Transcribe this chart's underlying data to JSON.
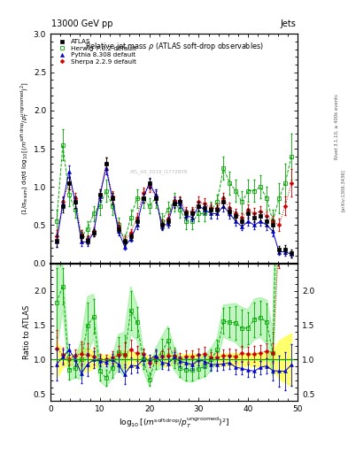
{
  "title_left": "13000 GeV pp",
  "title_right": "Jets",
  "plot_title": "Relative jet mass ρ (ATLAS soft-drop observables)",
  "xlabel": "log$_{10}$[(m$^{\\rm soft\\,drop}$/p$_T^{\\rm ungroomed})^2$]",
  "ylabel_main": "(1/σ$_{resum}$) dσ/d log$_{10}$[(m$^{soft\\,drop}$/p$_T^{ungroomed})^2$]",
  "ylabel_ratio": "Ratio to ATLAS",
  "right_label": "Rivet 3.1.10, ≥ 400k events",
  "right_label2": "[arXiv:1306.3436]",
  "watermark": "ATL_AS_2019_I1772858",
  "xlim": [
    0,
    50
  ],
  "ylim_main": [
    0,
    3
  ],
  "ylim_ratio": [
    0.4,
    2.4
  ],
  "xticks": [
    0,
    10,
    20,
    30,
    40,
    50
  ],
  "yticks_main": [
    0.0,
    0.5,
    1.0,
    1.5,
    2.0,
    2.5,
    3.0
  ],
  "yticks_ratio": [
    0.5,
    1.0,
    1.5,
    2.0
  ],
  "atlas_x": [
    1.25,
    2.5,
    3.75,
    5.0,
    6.25,
    7.5,
    8.75,
    10.0,
    11.25,
    12.5,
    13.75,
    15.0,
    16.25,
    17.5,
    18.75,
    20.0,
    21.25,
    22.5,
    23.75,
    25.0,
    26.25,
    27.5,
    28.75,
    30.0,
    31.25,
    32.5,
    33.75,
    35.0,
    36.25,
    37.5,
    38.75,
    40.0,
    41.25,
    42.5,
    43.75,
    45.0,
    46.25,
    47.5,
    48.75
  ],
  "atlas_y": [
    0.3,
    0.75,
    1.05,
    0.8,
    0.35,
    0.3,
    0.4,
    0.9,
    1.3,
    0.85,
    0.45,
    0.28,
    0.35,
    0.55,
    0.85,
    1.05,
    0.85,
    0.5,
    0.55,
    0.78,
    0.8,
    0.65,
    0.65,
    0.75,
    0.72,
    0.7,
    0.7,
    0.8,
    0.68,
    0.62,
    0.55,
    0.65,
    0.6,
    0.62,
    0.55,
    0.5,
    0.18,
    0.18,
    0.13
  ],
  "atlas_yerr": [
    0.08,
    0.08,
    0.08,
    0.07,
    0.06,
    0.05,
    0.05,
    0.07,
    0.08,
    0.07,
    0.05,
    0.04,
    0.04,
    0.05,
    0.06,
    0.06,
    0.06,
    0.05,
    0.05,
    0.06,
    0.06,
    0.05,
    0.06,
    0.06,
    0.06,
    0.06,
    0.06,
    0.07,
    0.06,
    0.06,
    0.05,
    0.06,
    0.06,
    0.06,
    0.06,
    0.07,
    0.05,
    0.06,
    0.05
  ],
  "herwig_x": [
    1.25,
    2.5,
    3.75,
    5.0,
    6.25,
    7.5,
    8.75,
    10.0,
    11.25,
    12.5,
    13.75,
    15.0,
    16.25,
    17.5,
    18.75,
    20.0,
    21.25,
    22.5,
    23.75,
    25.0,
    26.25,
    27.5,
    28.75,
    30.0,
    31.25,
    32.5,
    33.75,
    35.0,
    36.25,
    37.5,
    38.75,
    40.0,
    41.25,
    42.5,
    43.75,
    45.0,
    46.25,
    47.5,
    48.75
  ],
  "herwig_y": [
    0.55,
    1.55,
    0.9,
    0.7,
    0.35,
    0.45,
    0.65,
    0.75,
    0.95,
    0.75,
    0.5,
    0.3,
    0.6,
    0.85,
    0.85,
    0.75,
    0.85,
    0.55,
    0.7,
    0.8,
    0.7,
    0.55,
    0.55,
    0.65,
    0.65,
    0.7,
    0.8,
    1.25,
    1.05,
    0.95,
    0.8,
    0.95,
    0.95,
    1.0,
    0.85,
    0.55,
    0.85,
    1.05,
    1.4
  ],
  "herwig_yerr": [
    0.15,
    0.2,
    0.15,
    0.1,
    0.08,
    0.1,
    0.1,
    0.12,
    0.15,
    0.12,
    0.1,
    0.08,
    0.1,
    0.12,
    0.12,
    0.1,
    0.12,
    0.1,
    0.1,
    0.12,
    0.1,
    0.1,
    0.1,
    0.1,
    0.1,
    0.1,
    0.1,
    0.15,
    0.15,
    0.15,
    0.15,
    0.15,
    0.15,
    0.15,
    0.15,
    0.15,
    0.2,
    0.25,
    0.3
  ],
  "pythia_x": [
    1.25,
    2.5,
    3.75,
    5.0,
    6.25,
    7.5,
    8.75,
    10.0,
    11.25,
    12.5,
    13.75,
    15.0,
    16.25,
    17.5,
    18.75,
    20.0,
    21.25,
    22.5,
    23.75,
    25.0,
    26.25,
    27.5,
    28.75,
    30.0,
    31.25,
    32.5,
    33.75,
    35.0,
    36.25,
    37.5,
    38.75,
    40.0,
    41.25,
    42.5,
    43.75,
    45.0,
    46.25,
    47.5,
    48.75
  ],
  "pythia_y": [
    0.28,
    0.78,
    1.2,
    0.8,
    0.28,
    0.28,
    0.4,
    0.88,
    1.25,
    0.85,
    0.42,
    0.22,
    0.32,
    0.5,
    0.85,
    1.05,
    0.9,
    0.48,
    0.52,
    0.8,
    0.78,
    0.62,
    0.6,
    0.75,
    0.7,
    0.65,
    0.65,
    0.75,
    0.65,
    0.55,
    0.48,
    0.55,
    0.5,
    0.55,
    0.5,
    0.42,
    0.15,
    0.15,
    0.12
  ],
  "pythia_yerr": [
    0.07,
    0.08,
    0.08,
    0.07,
    0.05,
    0.05,
    0.05,
    0.07,
    0.08,
    0.07,
    0.05,
    0.04,
    0.04,
    0.05,
    0.06,
    0.07,
    0.07,
    0.05,
    0.05,
    0.06,
    0.06,
    0.05,
    0.05,
    0.06,
    0.06,
    0.06,
    0.06,
    0.07,
    0.06,
    0.06,
    0.05,
    0.06,
    0.05,
    0.06,
    0.06,
    0.07,
    0.04,
    0.05,
    0.04
  ],
  "sherpa_x": [
    1.25,
    2.5,
    3.75,
    5.0,
    6.25,
    7.5,
    8.75,
    10.0,
    11.25,
    12.5,
    13.75,
    15.0,
    16.25,
    17.5,
    18.75,
    20.0,
    21.25,
    22.5,
    23.75,
    25.0,
    26.25,
    27.5,
    28.75,
    30.0,
    31.25,
    32.5,
    33.75,
    35.0,
    36.25,
    37.5,
    38.75,
    40.0,
    41.25,
    42.5,
    43.75,
    45.0,
    46.25,
    47.5,
    48.75
  ],
  "sherpa_y": [
    0.35,
    0.8,
    1.05,
    0.85,
    0.38,
    0.32,
    0.42,
    0.9,
    1.3,
    0.88,
    0.48,
    0.3,
    0.4,
    0.6,
    0.92,
    1.0,
    0.88,
    0.52,
    0.58,
    0.82,
    0.82,
    0.68,
    0.68,
    0.8,
    0.78,
    0.72,
    0.72,
    0.85,
    0.72,
    0.65,
    0.6,
    0.7,
    0.65,
    0.68,
    0.62,
    0.55,
    0.5,
    0.75,
    1.05
  ],
  "sherpa_yerr": [
    0.08,
    0.08,
    0.08,
    0.07,
    0.06,
    0.05,
    0.05,
    0.07,
    0.09,
    0.07,
    0.06,
    0.05,
    0.05,
    0.06,
    0.07,
    0.07,
    0.07,
    0.05,
    0.06,
    0.06,
    0.06,
    0.06,
    0.06,
    0.07,
    0.07,
    0.06,
    0.06,
    0.07,
    0.07,
    0.06,
    0.06,
    0.07,
    0.07,
    0.07,
    0.06,
    0.07,
    0.08,
    0.12,
    0.18
  ],
  "atlas_color": "#000000",
  "herwig_color": "#00aa00",
  "pythia_color": "#0000cc",
  "sherpa_color": "#cc0000"
}
